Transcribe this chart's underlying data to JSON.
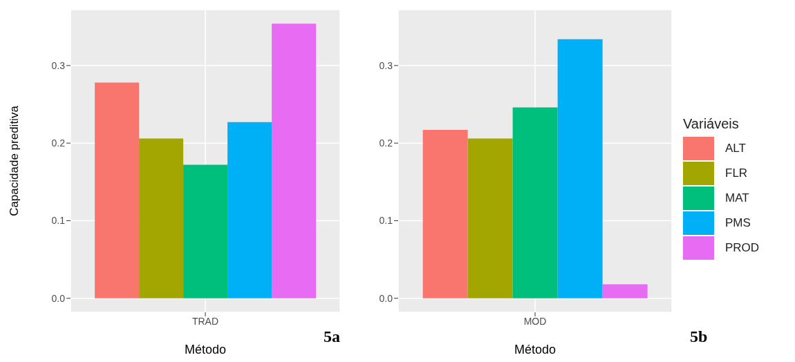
{
  "chart_data": [
    {
      "type": "bar",
      "ylabel": "Capacidade preditiva",
      "xlabel": "Método",
      "categories": [
        "TRAD"
      ],
      "series": [
        {
          "color": "#f8766d",
          "values": [
            0.278
          ]
        },
        {
          "color": "#a3a500",
          "values": [
            0.206
          ]
        },
        {
          "color": "#00bf7d",
          "values": [
            0.172
          ]
        },
        {
          "color": "#00b0f6",
          "values": [
            0.227
          ]
        },
        {
          "color": "#e76bf3",
          "values": [
            0.354
          ]
        }
      ],
      "ylim": [
        -0.018,
        0.372
      ],
      "yticks": [
        {
          "value": 0,
          "label": "0.0"
        },
        0.1,
        0.2,
        0.3
      ],
      "grid": true,
      "legend": false,
      "annotations": [
        "5a"
      ]
    },
    {
      "type": "bar",
      "xlabel": "Método",
      "legend_title": "Variáveis",
      "categories": [
        "MOD"
      ],
      "series": [
        {
          "name": "ALT",
          "color": "#f8766d",
          "values": [
            0.217
          ]
        },
        {
          "name": "FLR",
          "color": "#a3a500",
          "values": [
            0.206
          ]
        },
        {
          "name": "MAT",
          "color": "#00bf7d",
          "values": [
            0.246
          ]
        },
        {
          "name": "PMS",
          "color": "#00b0f6",
          "values": [
            0.334
          ]
        },
        {
          "name": "PROD",
          "color": "#e76bf3",
          "values": [
            0.018
          ]
        }
      ],
      "ylim": [
        -0.018,
        0.372
      ],
      "yticks": [
        {
          "value": 0,
          "label": "0.0"
        },
        0.1,
        0.2,
        0.3
      ],
      "grid": true,
      "legend": "right",
      "annotations": [
        "5b"
      ]
    }
  ]
}
